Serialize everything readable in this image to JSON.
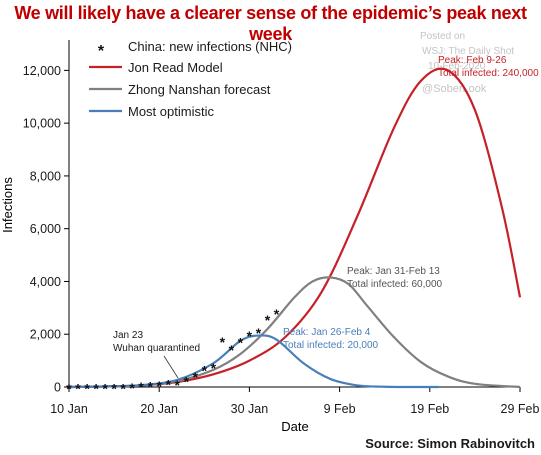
{
  "title": "We will likely have a clearer sense of the epidemic’s peak next week",
  "source": "Source: Simon Rabinovitch",
  "watermark": {
    "posted_on": "Posted on",
    "line2": "WSJ: The Daily Shot",
    "line3": "10-Feb-2020",
    "handle": "@SoberLook"
  },
  "colors": {
    "title": "#c00000",
    "china": "#111111",
    "read": "#c62127",
    "zhong": "#808080",
    "optimistic": "#4a7ebb"
  },
  "chart_data": {
    "type": "line",
    "xlabel": "Date",
    "ylabel": "Infections",
    "xlim": [
      "2020-01-10",
      "2020-02-29"
    ],
    "ylim": [
      0,
      13000
    ],
    "x_ticks": [
      "10 Jan",
      "20 Jan",
      "30 Jan",
      "9 Feb",
      "19 Feb",
      "29 Feb"
    ],
    "x_tick_dates": [
      "2020-01-10",
      "2020-01-20",
      "2020-01-30",
      "2020-02-09",
      "2020-02-19",
      "2020-02-29"
    ],
    "y_ticks": [
      0,
      2000,
      4000,
      6000,
      8000,
      10000,
      12000
    ],
    "y_tick_labels": [
      "0",
      "2,000",
      "4,000",
      "6,000",
      "8,000",
      "10,000",
      "12,000"
    ],
    "legend": {
      "position": "top-left",
      "entries": [
        "China: new infections (NHC)",
        "Jon Read Model",
        "Zhong Nanshan forecast",
        "Most optimistic"
      ]
    },
    "series": [
      {
        "name": "China: new infections (NHC)",
        "style": "markers",
        "x": [
          "2020-01-10",
          "2020-01-11",
          "2020-01-12",
          "2020-01-13",
          "2020-01-14",
          "2020-01-15",
          "2020-01-16",
          "2020-01-17",
          "2020-01-18",
          "2020-01-19",
          "2020-01-20",
          "2020-01-21",
          "2020-01-22",
          "2020-01-23",
          "2020-01-24",
          "2020-01-25",
          "2020-01-26",
          "2020-01-27",
          "2020-01-28",
          "2020-01-29",
          "2020-01-30",
          "2020-01-31",
          "2020-02-01",
          "2020-02-02"
        ],
        "y": [
          0,
          0,
          0,
          0,
          0,
          0,
          4,
          17,
          59,
          77,
          93,
          149,
          131,
          259,
          444,
          688,
          769,
          1771,
          1459,
          1737,
          1982,
          2102,
          2590,
          2829
        ]
      },
      {
        "name": "Jon Read Model",
        "x": [
          "2020-01-10",
          "2020-01-14",
          "2020-01-18",
          "2020-01-22",
          "2020-01-26",
          "2020-01-30",
          "2020-02-03",
          "2020-02-07",
          "2020-02-11",
          "2020-02-15",
          "2020-02-18",
          "2020-02-21",
          "2020-02-24",
          "2020-02-27",
          "2020-02-29"
        ],
        "y": [
          0,
          20,
          60,
          190,
          480,
          1000,
          1900,
          3600,
          6500,
          9800,
          11600,
          12000,
          10500,
          6800,
          3400
        ]
      },
      {
        "name": "Zhong Nanshan forecast",
        "x": [
          "2020-01-10",
          "2020-01-14",
          "2020-01-18",
          "2020-01-22",
          "2020-01-26",
          "2020-01-29",
          "2020-02-01",
          "2020-02-04",
          "2020-02-06",
          "2020-02-08",
          "2020-02-10",
          "2020-02-12",
          "2020-02-15",
          "2020-02-18",
          "2020-02-21",
          "2020-02-24",
          "2020-02-29"
        ],
        "y": [
          0,
          20,
          60,
          220,
          650,
          1250,
          2200,
          3400,
          4000,
          4150,
          3900,
          3100,
          1900,
          950,
          400,
          120,
          0
        ]
      },
      {
        "name": "Most optimistic",
        "x": [
          "2020-01-10",
          "2020-01-14",
          "2020-01-18",
          "2020-01-22",
          "2020-01-26",
          "2020-01-29",
          "2020-01-31",
          "2020-02-02",
          "2020-02-05",
          "2020-02-08",
          "2020-02-11",
          "2020-02-14",
          "2020-02-17",
          "2020-02-20"
        ],
        "y": [
          0,
          20,
          70,
          270,
          900,
          1750,
          1950,
          1800,
          900,
          300,
          60,
          10,
          0,
          0
        ]
      }
    ],
    "annotations": [
      {
        "series": "Jon Read Model",
        "lines": [
          "Peak: Feb 9-26",
          "Total infected: 240,000"
        ]
      },
      {
        "series": "Zhong Nanshan forecast",
        "lines": [
          "Peak: Jan 31-Feb 13",
          "Total infected: 60,000"
        ]
      },
      {
        "series": "Most optimistic",
        "lines": [
          "Peak: Jan 26-Feb 4",
          "Total infected: 20,000"
        ]
      },
      {
        "series": "China: new infections (NHC)",
        "lines": [
          "Jan 23",
          "Wuhan quarantined"
        ]
      }
    ]
  }
}
